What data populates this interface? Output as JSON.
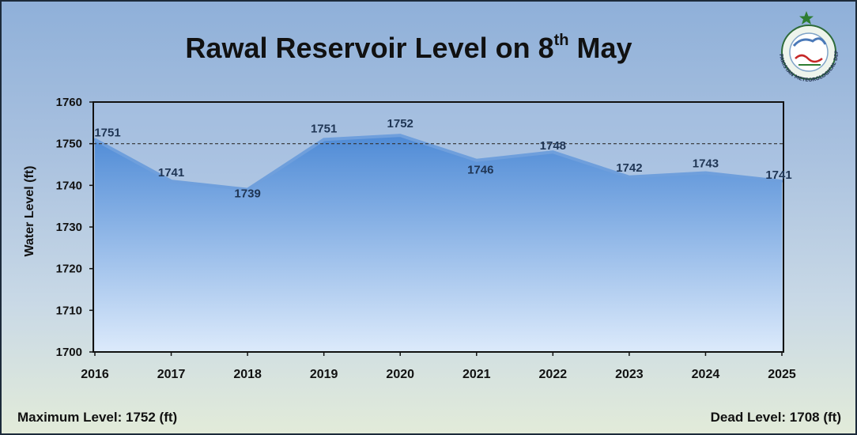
{
  "header": {
    "title_main": "Rawal Reservoir Level on 8",
    "title_sup": "th",
    "title_end": " May"
  },
  "logo": {
    "icon": "pmd-emblem-icon",
    "text": "PAKISTAN METEOROLOGICAL DEPARTMENT"
  },
  "footer": {
    "max_level": "Maximum Level: 1752 (ft)",
    "dead_level": "Dead Level: 1708 (ft)"
  },
  "colors": {
    "area_top": "#4f8bd6",
    "area_bottom": "#dceafb",
    "line": "#6f9fdc",
    "reference_line": "#333333",
    "label": "#1f3554"
  },
  "chart_data": {
    "type": "area",
    "title": "Rawal Reservoir Level on 8th May",
    "xlabel": "",
    "ylabel": "Water Level (ft)",
    "categories": [
      "2016",
      "2017",
      "2018",
      "2019",
      "2020",
      "2021",
      "2022",
      "2023",
      "2024",
      "2025"
    ],
    "series": [
      {
        "values": [
          1751,
          1741,
          1739,
          1751,
          1752,
          1746,
          1748,
          1742,
          1743,
          1741
        ]
      }
    ],
    "data_labels": [
      "1751",
      "1741",
      "1739",
      "1751",
      "1752",
      "1746",
      "1748",
      "1742",
      "1743",
      "1741"
    ],
    "ylim": [
      1700,
      1760
    ],
    "yticks": [
      1700,
      1710,
      1720,
      1730,
      1740,
      1750,
      1760
    ],
    "reference_line": 1750,
    "grid": false,
    "legend": "none"
  }
}
